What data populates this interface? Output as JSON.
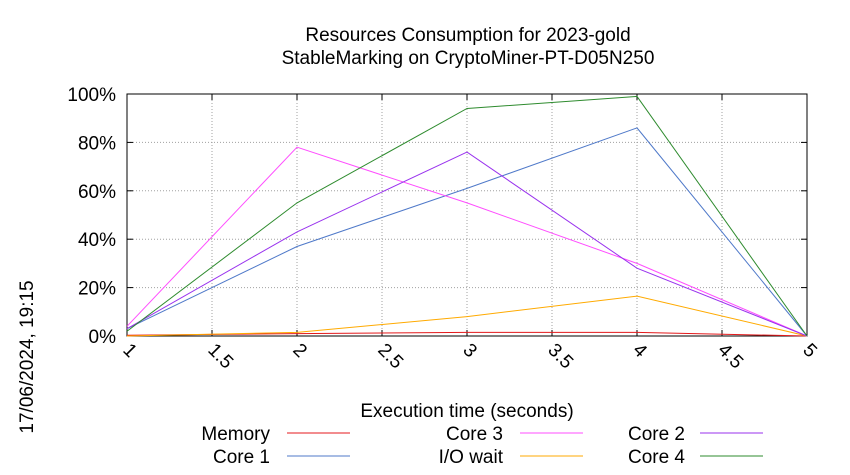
{
  "chart_data": {
    "type": "line",
    "title_line1": "Resources Consumption for 2023-gold",
    "title_line2": "StableMarking on CryptoMiner-PT-D05N250",
    "xlabel": "Execution time (seconds)",
    "ylabel": "",
    "timestamp": "17/06/2024, 19:15",
    "xlim": [
      1,
      5
    ],
    "ylim": [
      0,
      100
    ],
    "x_ticks": [
      "1",
      "1.5",
      "2",
      "2.5",
      "3",
      "3.5",
      "4",
      "4.5",
      "5"
    ],
    "y_ticks": [
      "0%",
      "20%",
      "40%",
      "60%",
      "80%",
      "100%"
    ],
    "grid": true,
    "legend_position": "bottom",
    "x": [
      1,
      2,
      3,
      4,
      5
    ],
    "series": [
      {
        "name": "Memory",
        "color": "#e41a1c",
        "values": [
          0.3,
          1.0,
          1.5,
          1.5,
          0
        ]
      },
      {
        "name": "Core 1",
        "color": "#4f79c9",
        "values": [
          3,
          37,
          61,
          86,
          0
        ]
      },
      {
        "name": "Core 3",
        "color": "#ff4dff",
        "values": [
          4,
          78,
          55,
          30,
          0
        ]
      },
      {
        "name": "I/O wait",
        "color": "#ffaa00",
        "values": [
          0,
          1.5,
          8,
          16.5,
          0
        ]
      },
      {
        "name": "Core 2",
        "color": "#9932ee",
        "values": [
          3,
          43,
          76,
          28,
          0
        ]
      },
      {
        "name": "Core 4",
        "color": "#2e8b2e",
        "values": [
          2,
          55,
          94,
          99,
          0
        ]
      }
    ]
  }
}
